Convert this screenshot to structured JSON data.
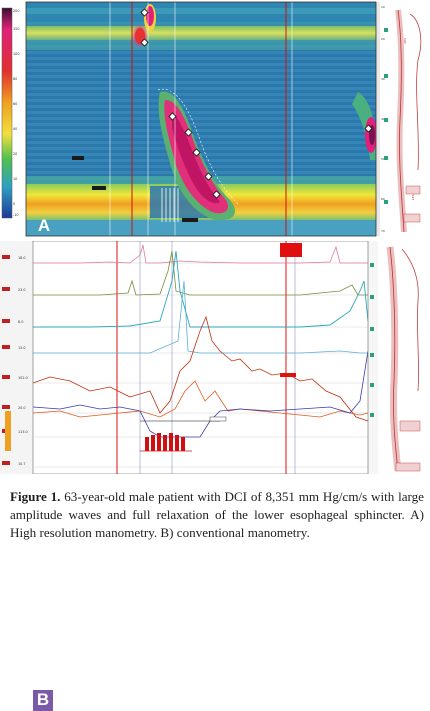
{
  "figure": {
    "panel_a": {
      "letter": "A"
    },
    "panel_b": {
      "letter": "B"
    },
    "caption": {
      "label": "Figure 1.",
      "text": " 63-year-old male patient with DCI of 8,351 mm Hg/cm/s with large amplitude waves and full relaxation of the lower esophageal sphincter. A) High resolution manometry. B) conventional manometry."
    }
  },
  "colors": {
    "hrm_background": "#2f7fb0",
    "pressure_peak": "#e0207a",
    "trace_red": "#d63a1f",
    "trace_teal": "#2aa9b8",
    "trace_blue": "#3a3aa8",
    "trace_olive": "#7a8a3a",
    "marker_red": "#e01010",
    "panel_b_label": "#7a5aa8"
  }
}
